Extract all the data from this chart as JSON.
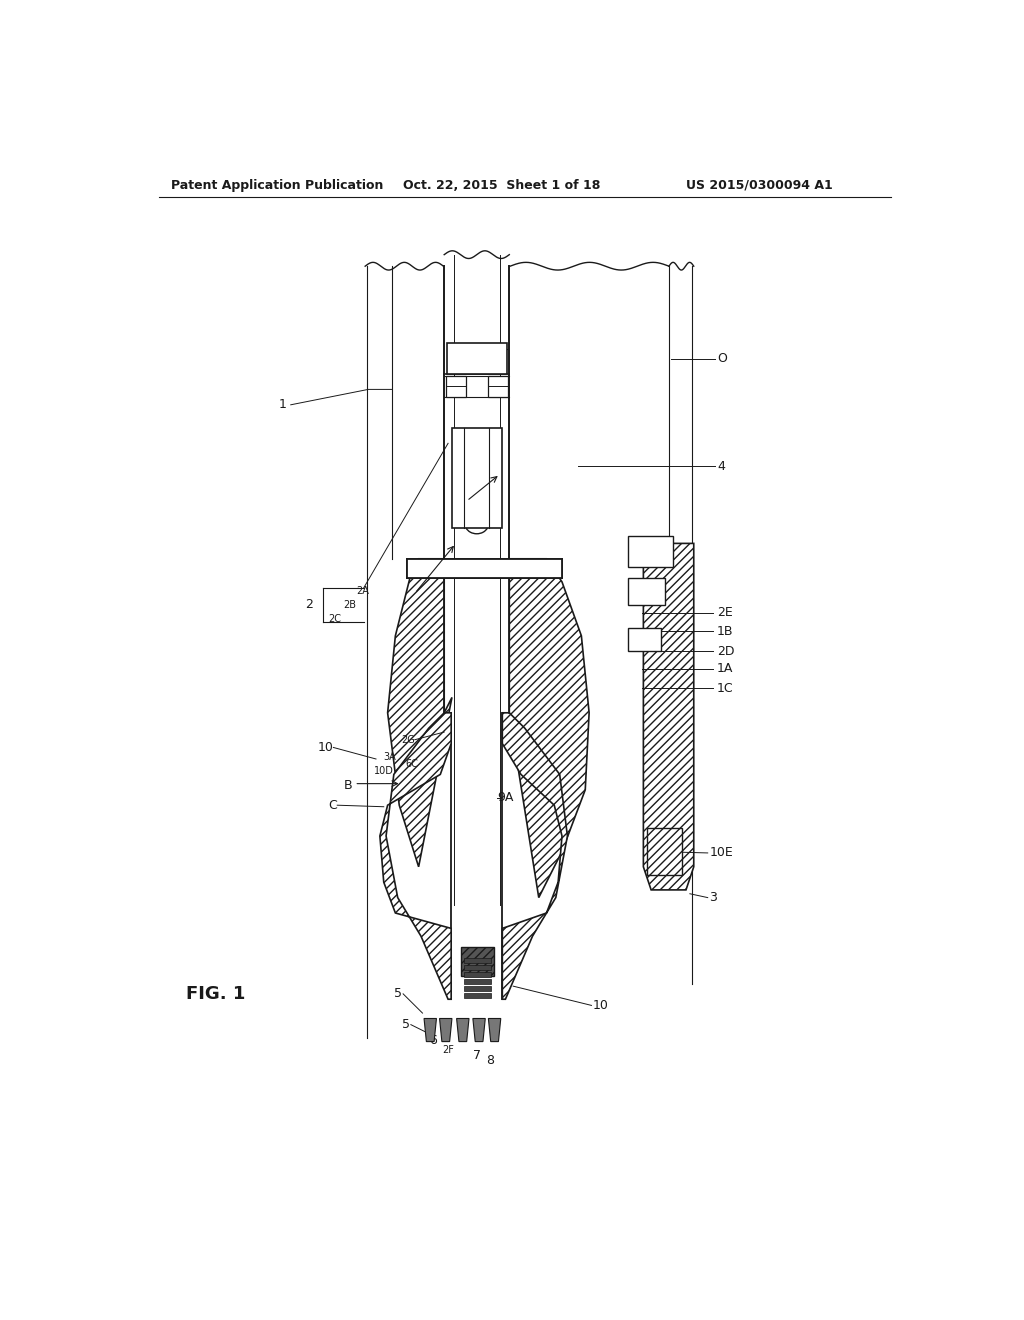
{
  "bg_color": "#ffffff",
  "line_color": "#1a1a1a",
  "header_left": "Patent Application Publication",
  "header_center": "Oct. 22, 2015  Sheet 1 of 18",
  "header_right": "US 2015/0300094 A1",
  "fig_label": "FIG. 1",
  "ann_fontsize": 9,
  "header_fontsize": 9,
  "fig_fontsize": 13
}
